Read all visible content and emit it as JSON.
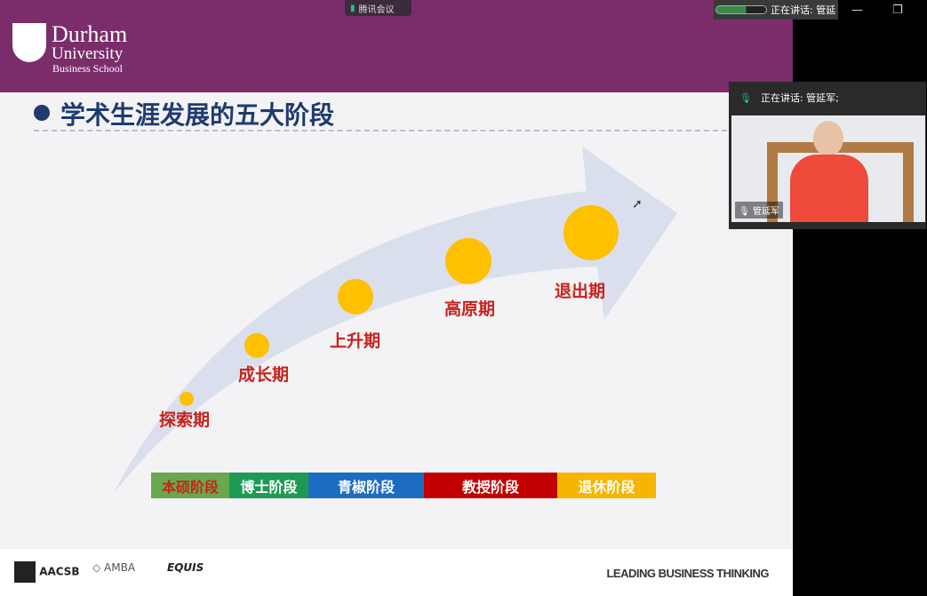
{
  "meeting_app": {
    "title": "腾讯会议",
    "speaking_top": "正在讲话: 管延",
    "minimize": "—",
    "restore": "❐"
  },
  "logo": {
    "line1": "Durham",
    "line2": "University",
    "line3": "Business School"
  },
  "slide": {
    "title": "学术生涯发展的五大阶段",
    "phases": [
      "探索期",
      "成长期",
      "上升期",
      "高原期",
      "退出期"
    ],
    "stages": [
      {
        "label": "本硕阶段",
        "color": "#6aa84f",
        "text_color": "#c8221c"
      },
      {
        "label": "博士阶段",
        "color": "#1e9a55",
        "text_color": "#ffffff"
      },
      {
        "label": "青椒阶段",
        "color": "#1b6dc1",
        "text_color": "#ffffff"
      },
      {
        "label": "教授阶段",
        "color": "#c00000",
        "text_color": "#ffffff"
      },
      {
        "label": "退休阶段",
        "color": "#f7b500",
        "text_color": "#ffffff"
      }
    ],
    "circle_color": "#ffc000",
    "accreditations": [
      "AACSB",
      "AMBA",
      "EQUIS"
    ],
    "tagline": "LEADING BUSINESS THINKING"
  },
  "video": {
    "speaking": "正在讲话: 管延军;",
    "participant": "管延军"
  }
}
